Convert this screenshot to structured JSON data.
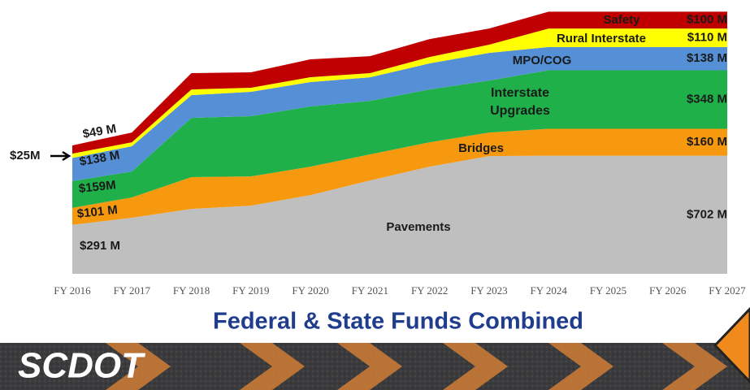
{
  "chart_data": {
    "type": "stacked-area",
    "title": "Federal & State Funds Combined",
    "categories": [
      "FY 2016",
      "FY 2017",
      "FY 2018",
      "FY 2019",
      "FY 2020",
      "FY 2021",
      "FY 2022",
      "FY 2023",
      "FY 2024",
      "FY 2025",
      "FY 2026",
      "FY 2027"
    ],
    "ylim": [
      0,
      1560
    ],
    "series": [
      {
        "name": "Pavements",
        "color": "#bfbfbf",
        "values": [
          291,
          333,
          386,
          405,
          468,
          555,
          637,
          700,
          702,
          702,
          702,
          702
        ],
        "value_labels": [
          "$291 M",
          null,
          null,
          null,
          null,
          null,
          null,
          null,
          null,
          null,
          null,
          "$702 M"
        ]
      },
      {
        "name": "Bridges",
        "color": "#f7990f",
        "values": [
          101,
          121,
          189,
          174,
          169,
          155,
          145,
          140,
          160,
          160,
          160,
          160
        ],
        "value_labels": [
          "$101 M",
          null,
          null,
          null,
          null,
          null,
          null,
          null,
          null,
          null,
          null,
          "$160 M"
        ]
      },
      {
        "name": "Interstate Upgrades",
        "color": "#1fb04a",
        "values": [
          159,
          154,
          352,
          358,
          358,
          318,
          314,
          309,
          348,
          348,
          348,
          348
        ],
        "value_labels": [
          "$159M",
          null,
          null,
          null,
          null,
          null,
          null,
          null,
          null,
          null,
          null,
          "$348 M"
        ]
      },
      {
        "name": "MPO/COG",
        "color": "#5590d6",
        "values": [
          138,
          150,
          135,
          145,
          145,
          140,
          155,
          164,
          138,
          138,
          138,
          138
        ],
        "value_labels": [
          "$138 M",
          null,
          null,
          null,
          null,
          null,
          null,
          null,
          null,
          null,
          null,
          "$138 M"
        ]
      },
      {
        "name": "Rural Interstate",
        "color": "#ffff00",
        "values": [
          25,
          24,
          34,
          24,
          29,
          25,
          38,
          49,
          110,
          110,
          110,
          110
        ],
        "value_labels": [
          "$25M",
          null,
          null,
          null,
          null,
          null,
          null,
          null,
          null,
          null,
          null,
          "$110 M"
        ]
      },
      {
        "name": "Safety",
        "color": "#c00000",
        "values": [
          49,
          58,
          97,
          92,
          106,
          101,
          106,
          96,
          100,
          100,
          100,
          100
        ],
        "value_labels": [
          "$49 M",
          null,
          null,
          null,
          null,
          null,
          null,
          null,
          null,
          null,
          null,
          "$100 M"
        ]
      }
    ]
  },
  "banner": {
    "logo": "SCDOT"
  }
}
